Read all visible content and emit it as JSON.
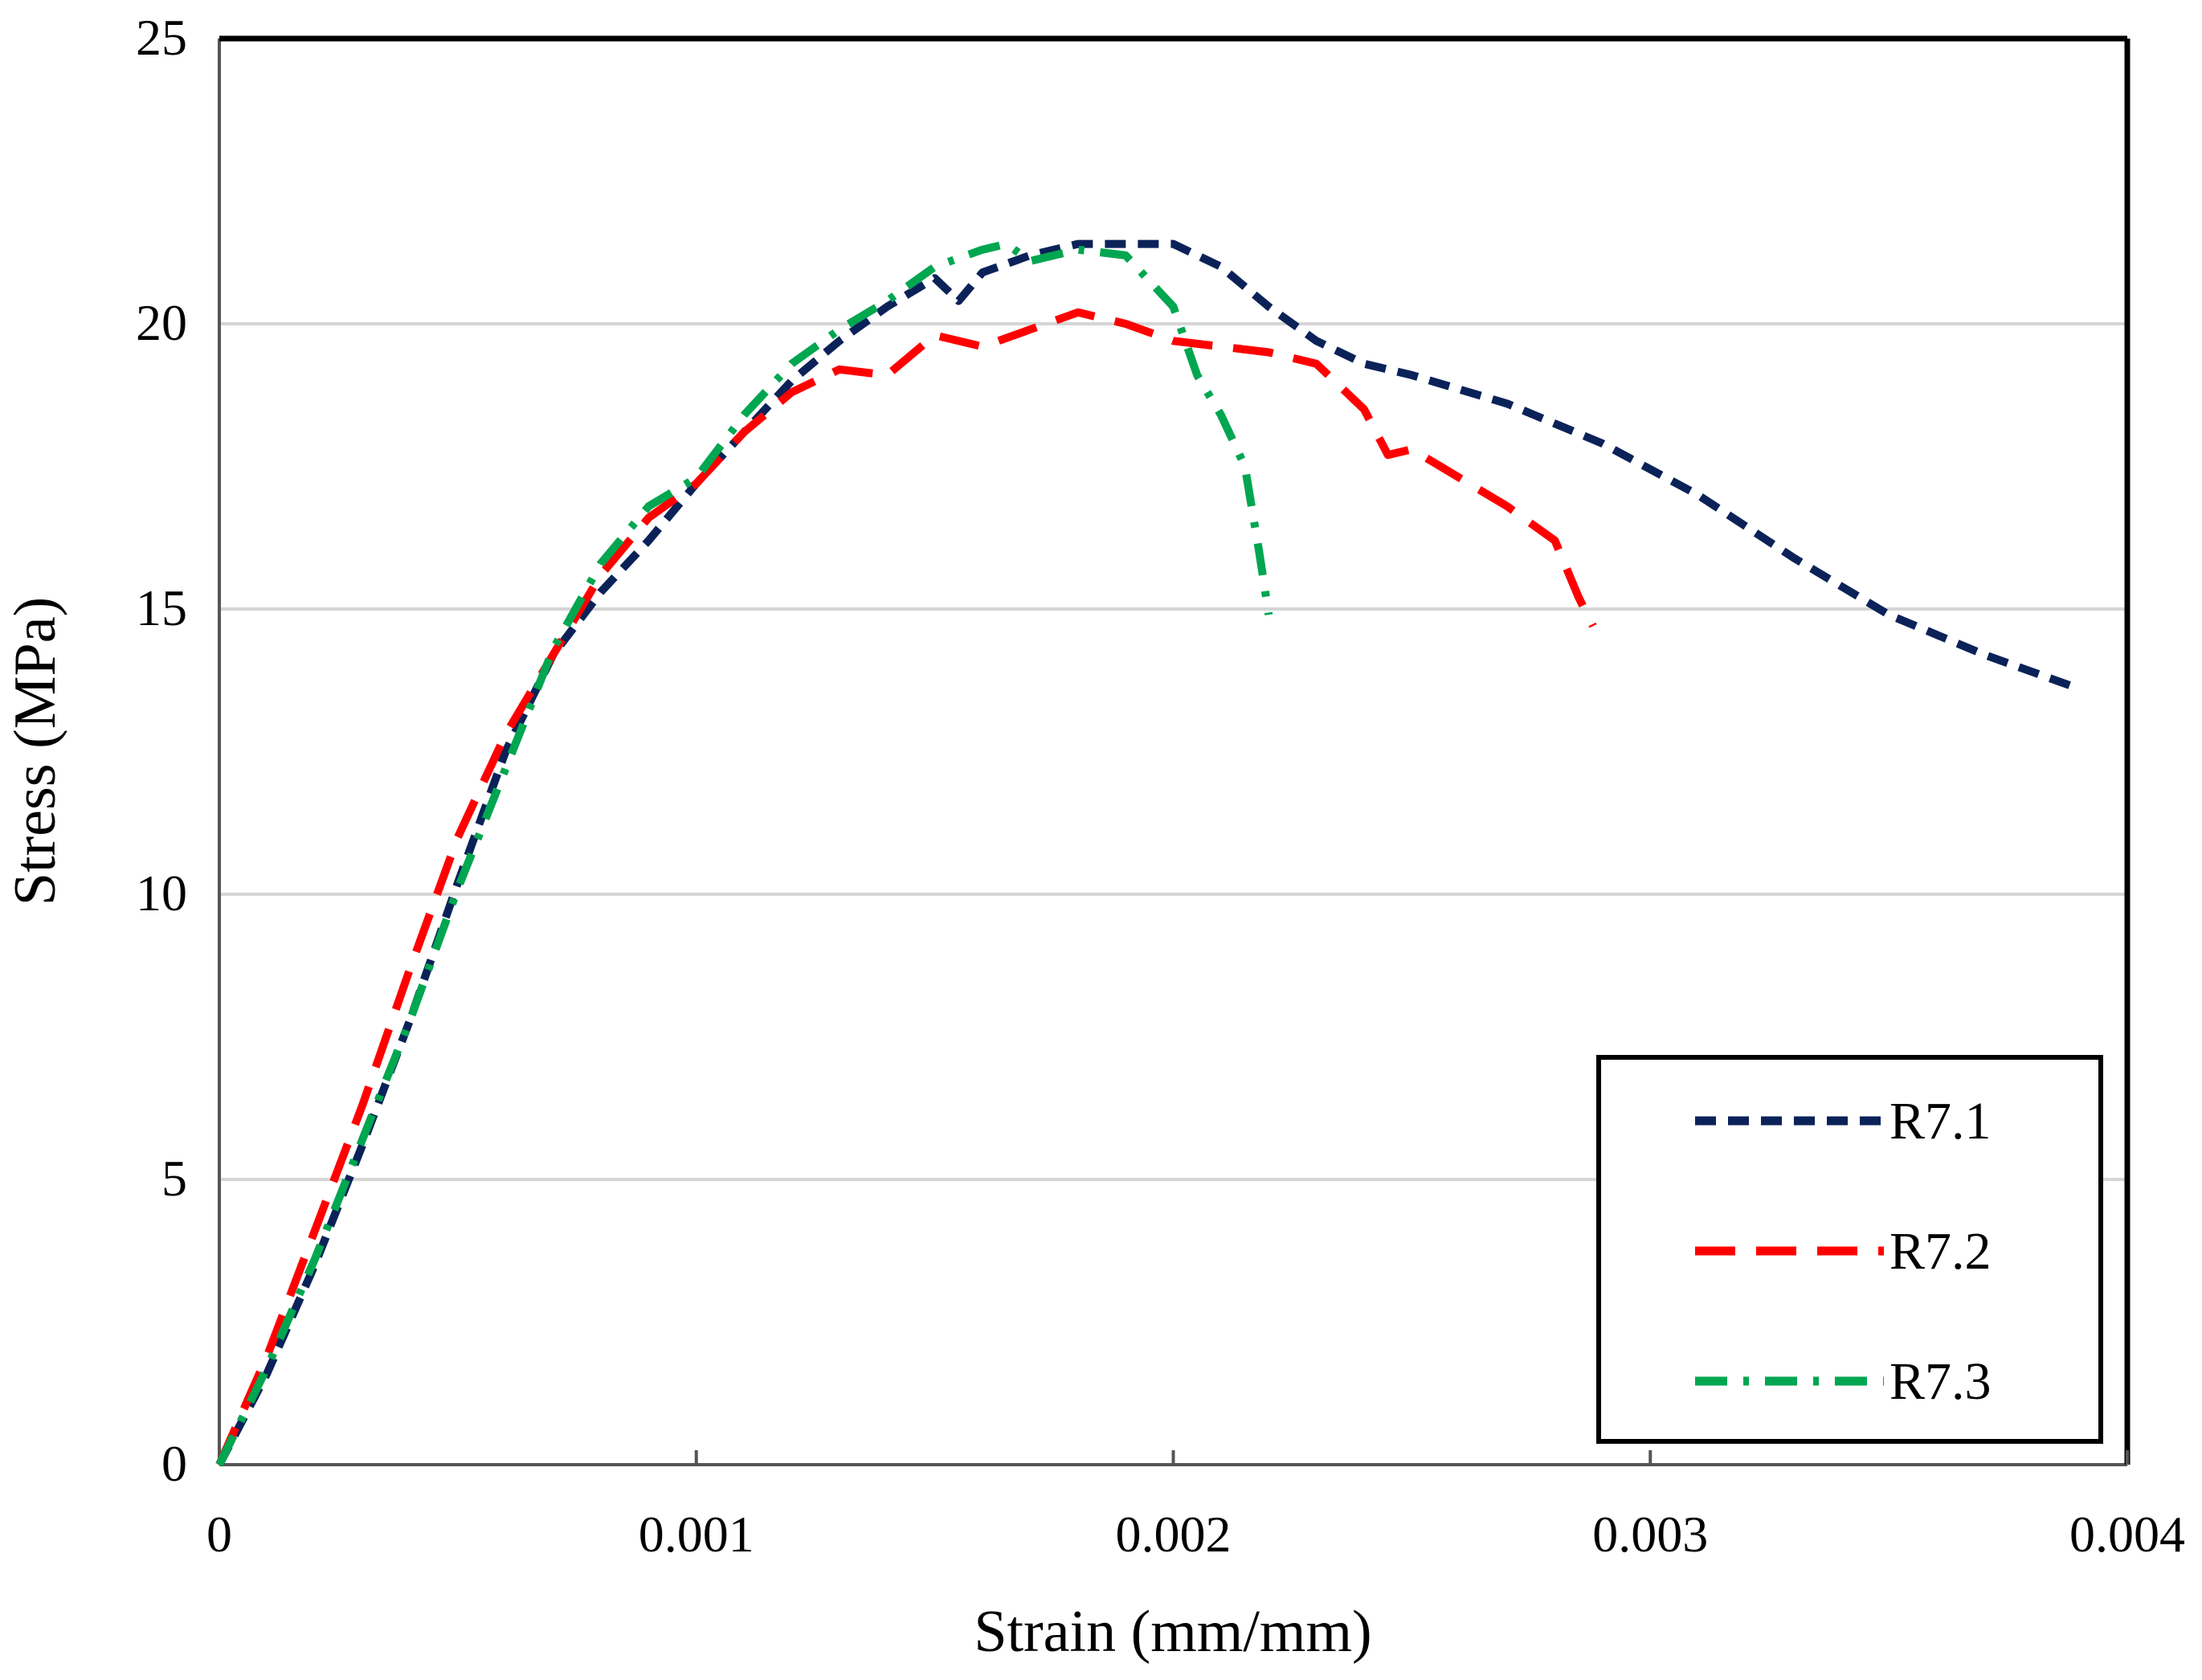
{
  "chart_data": {
    "type": "line",
    "title": "",
    "xlabel": "Strain (mm/mm)",
    "ylabel": "Stress (MPa)",
    "xlim": [
      0,
      0.004
    ],
    "ylim": [
      0,
      25
    ],
    "x_ticks": [
      0,
      0.001,
      0.002,
      0.003,
      0.004
    ],
    "x_tick_labels": [
      "0",
      "0.001",
      "0.002",
      "0.003",
      "0.004"
    ],
    "y_ticks": [
      0,
      5,
      10,
      15,
      20,
      25
    ],
    "y_tick_labels": [
      "0",
      "5",
      "10",
      "15",
      "20",
      "25"
    ],
    "grid": "horizontal",
    "legend_position": "bottom-right",
    "series": [
      {
        "name": "R7.1",
        "color": "#0b2259",
        "dash": "short-dash",
        "x": [
          0,
          0.0001,
          0.0002,
          0.0003,
          0.0004,
          0.0005,
          0.0006,
          0.0007,
          0.0008,
          0.0009,
          0.001,
          0.0011,
          0.0012,
          0.0013,
          0.0014,
          0.0015,
          0.00155,
          0.0016,
          0.0017,
          0.0018,
          0.0019,
          0.002,
          0.0021,
          0.0022,
          0.0023,
          0.0024,
          0.0025,
          0.0027,
          0.0029,
          0.0031,
          0.0033,
          0.0035,
          0.0037,
          0.0039
        ],
        "y": [
          0,
          1.6,
          3.5,
          5.6,
          7.8,
          10.2,
          12.5,
          14.2,
          15.3,
          16.2,
          17.2,
          18.1,
          19.0,
          19.7,
          20.3,
          20.8,
          20.4,
          20.9,
          21.2,
          21.4,
          21.4,
          21.4,
          21.0,
          20.3,
          19.7,
          19.3,
          19.1,
          18.6,
          17.9,
          17.0,
          15.9,
          14.9,
          14.2,
          13.6
        ]
      },
      {
        "name": "R7.2",
        "color": "#ff0000",
        "dash": "long-dash",
        "x": [
          0,
          0.0001,
          0.0002,
          0.0003,
          0.0004,
          0.0005,
          0.0006,
          0.0007,
          0.0008,
          0.0009,
          0.001,
          0.0011,
          0.0012,
          0.0013,
          0.0014,
          0.0015,
          0.0016,
          0.0017,
          0.0018,
          0.0019,
          0.002,
          0.0021,
          0.0022,
          0.0023,
          0.0024,
          0.00245,
          0.0025,
          0.0026,
          0.0027,
          0.0028,
          0.00285,
          0.00288
        ],
        "y": [
          0,
          1.9,
          4.1,
          6.3,
          8.7,
          11.0,
          12.8,
          14.2,
          15.6,
          16.6,
          17.2,
          18.1,
          18.8,
          19.2,
          19.1,
          19.8,
          19.6,
          19.9,
          20.2,
          20.0,
          19.7,
          19.6,
          19.5,
          19.3,
          18.5,
          17.7,
          17.8,
          17.3,
          16.8,
          16.2,
          15.2,
          14.7
        ]
      },
      {
        "name": "R7.3",
        "color": "#00a650",
        "dash": "dash-dot",
        "x": [
          0,
          0.0001,
          0.0002,
          0.0003,
          0.0004,
          0.0005,
          0.0006,
          0.0007,
          0.0008,
          0.0009,
          0.001,
          0.0011,
          0.0012,
          0.0013,
          0.0014,
          0.0015,
          0.0016,
          0.00165,
          0.0017,
          0.0018,
          0.0019,
          0.002,
          0.00205,
          0.0021,
          0.00215,
          0.00218,
          0.0022
        ],
        "y": [
          0,
          1.7,
          3.6,
          5.7,
          7.8,
          10.1,
          12.2,
          14.3,
          15.8,
          16.8,
          17.3,
          18.4,
          19.3,
          19.9,
          20.4,
          21.0,
          21.3,
          21.4,
          21.1,
          21.3,
          21.2,
          20.3,
          19.1,
          18.4,
          17.5,
          16.0,
          14.9
        ]
      }
    ]
  }
}
